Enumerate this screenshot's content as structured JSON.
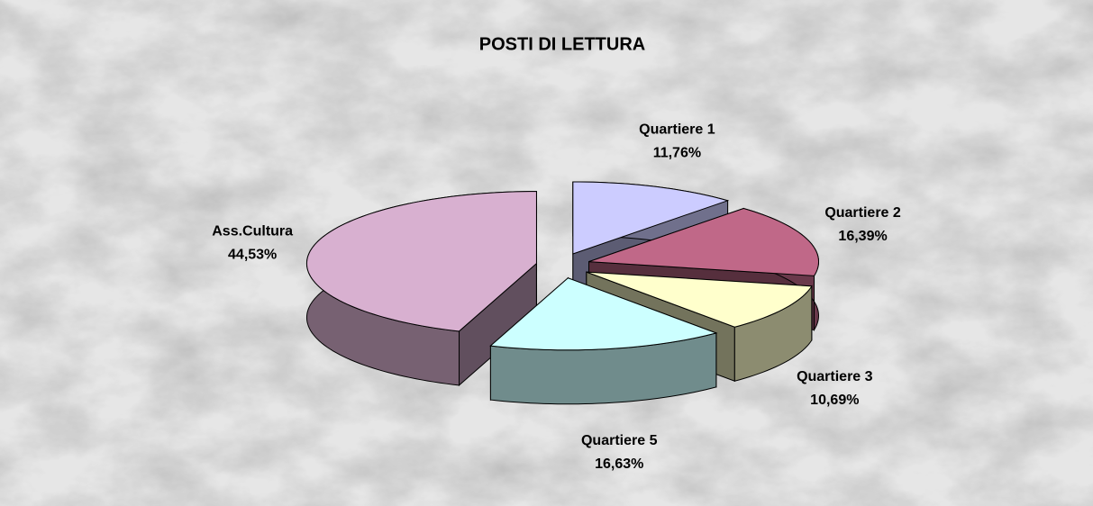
{
  "chart_data": {
    "type": "pie3d",
    "title": "POSTI DI LETTURA",
    "categories": [
      "Quartiere 1",
      "Quartiere 2",
      "Quartiere 3",
      "Quartiere 5",
      "Ass.Cultura"
    ],
    "values": [
      11.76,
      16.39,
      10.69,
      16.63,
      44.53
    ],
    "value_labels": [
      "11,76%",
      "16,39%",
      "10,69%",
      "16,63%",
      "44,53%"
    ],
    "colors": [
      "#ccccff",
      "#c06888",
      "#ffffcc",
      "#ccffff",
      "#d8b0d0"
    ]
  }
}
